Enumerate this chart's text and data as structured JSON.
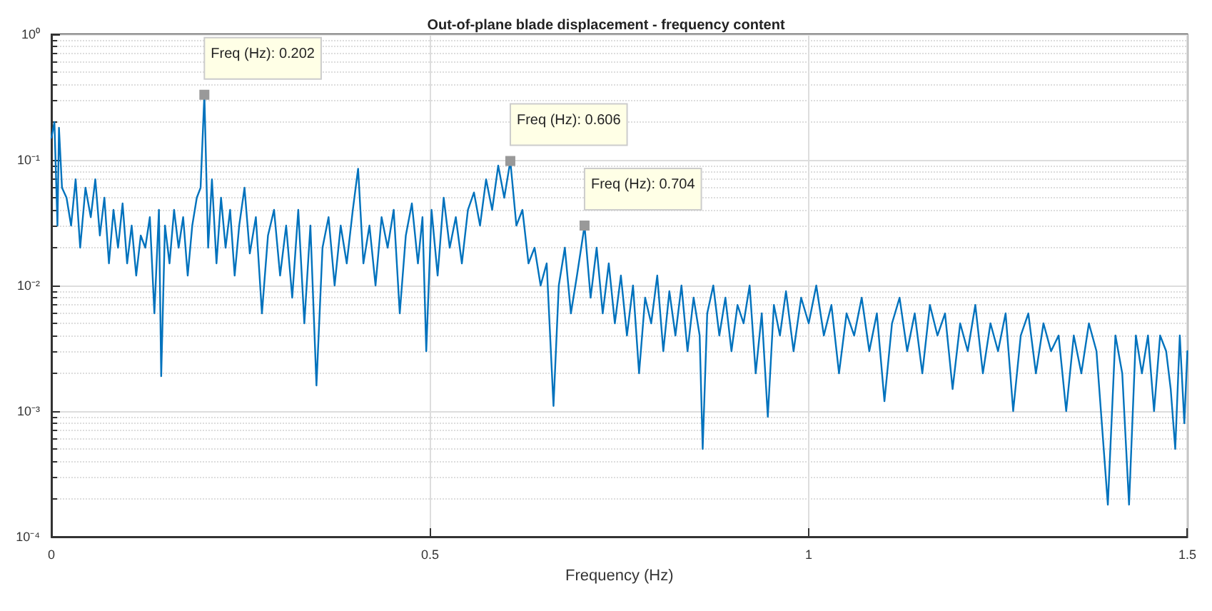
{
  "chart_data": {
    "type": "line",
    "title": "Out-of-plane blade displacement - frequency content",
    "xlabel": "Frequency (Hz)",
    "log": "y",
    "grid": true,
    "marker": "none",
    "line_style": "solid",
    "xlim": [
      0,
      1.5
    ],
    "xticks": [
      0,
      0.5,
      1,
      1.5
    ],
    "ylim": [
      0.0001,
      1
    ],
    "yticks": [
      {
        "value": 0.0001,
        "label": "10⁻⁴"
      },
      {
        "value": 0.001,
        "label": "10⁻³"
      },
      {
        "value": 0.01,
        "label": "10⁻²"
      },
      {
        "value": 0.1,
        "label": "10⁻¹"
      },
      {
        "value": 1,
        "label": "10⁰"
      }
    ],
    "annotations": [
      {
        "text": "Freq (Hz): 0.202",
        "x": 0.202,
        "y": 0.33
      },
      {
        "text": "Freq (Hz): 0.606",
        "x": 0.606,
        "y": 0.098
      },
      {
        "text": "Freq (Hz): 0.704",
        "x": 0.704,
        "y": 0.03
      }
    ],
    "series": [
      {
        "color": "#0072bd",
        "x": [
          0,
          0.004,
          0.008,
          0.01,
          0.014,
          0.02,
          0.026,
          0.032,
          0.038,
          0.045,
          0.052,
          0.058,
          0.064,
          0.07,
          0.076,
          0.082,
          0.088,
          0.094,
          0.1,
          0.106,
          0.112,
          0.118,
          0.124,
          0.13,
          0.136,
          0.142,
          0.145,
          0.15,
          0.156,
          0.162,
          0.168,
          0.174,
          0.18,
          0.186,
          0.192,
          0.197,
          0.202,
          0.207,
          0.212,
          0.218,
          0.224,
          0.23,
          0.236,
          0.242,
          0.248,
          0.255,
          0.262,
          0.27,
          0.278,
          0.286,
          0.294,
          0.302,
          0.31,
          0.318,
          0.326,
          0.334,
          0.342,
          0.35,
          0.358,
          0.366,
          0.374,
          0.382,
          0.39,
          0.398,
          0.405,
          0.412,
          0.42,
          0.428,
          0.436,
          0.444,
          0.452,
          0.46,
          0.468,
          0.476,
          0.484,
          0.49,
          0.495,
          0.502,
          0.51,
          0.518,
          0.526,
          0.534,
          0.542,
          0.55,
          0.558,
          0.566,
          0.574,
          0.582,
          0.59,
          0.598,
          0.606,
          0.614,
          0.622,
          0.63,
          0.638,
          0.646,
          0.654,
          0.663,
          0.67,
          0.678,
          0.686,
          0.694,
          0.704,
          0.712,
          0.72,
          0.728,
          0.736,
          0.744,
          0.752,
          0.76,
          0.768,
          0.776,
          0.784,
          0.792,
          0.8,
          0.808,
          0.816,
          0.824,
          0.832,
          0.84,
          0.848,
          0.856,
          0.86,
          0.866,
          0.874,
          0.882,
          0.89,
          0.898,
          0.906,
          0.914,
          0.922,
          0.93,
          0.938,
          0.946,
          0.954,
          0.962,
          0.97,
          0.98,
          0.99,
          1,
          1.01,
          1.02,
          1.03,
          1.04,
          1.05,
          1.06,
          1.07,
          1.08,
          1.09,
          1.1,
          1.11,
          1.12,
          1.13,
          1.14,
          1.15,
          1.16,
          1.17,
          1.18,
          1.19,
          1.2,
          1.21,
          1.22,
          1.23,
          1.24,
          1.25,
          1.26,
          1.27,
          1.28,
          1.29,
          1.3,
          1.31,
          1.32,
          1.33,
          1.34,
          1.35,
          1.36,
          1.37,
          1.38,
          1.395,
          1.405,
          1.414,
          1.423,
          1.432,
          1.44,
          1.448,
          1.456,
          1.464,
          1.472,
          1.478,
          1.484,
          1.49,
          1.496,
          1.5
        ],
        "values": [
          0.15,
          0.2,
          0.03,
          0.18,
          0.06,
          0.05,
          0.03,
          0.07,
          0.02,
          0.06,
          0.035,
          0.07,
          0.025,
          0.05,
          0.015,
          0.04,
          0.02,
          0.045,
          0.015,
          0.03,
          0.012,
          0.025,
          0.02,
          0.035,
          0.006,
          0.04,
          0.0019,
          0.03,
          0.015,
          0.04,
          0.02,
          0.035,
          0.012,
          0.03,
          0.05,
          0.06,
          0.33,
          0.02,
          0.07,
          0.015,
          0.05,
          0.02,
          0.04,
          0.012,
          0.03,
          0.06,
          0.018,
          0.035,
          0.006,
          0.025,
          0.04,
          0.012,
          0.03,
          0.008,
          0.04,
          0.005,
          0.03,
          0.0016,
          0.02,
          0.035,
          0.01,
          0.03,
          0.015,
          0.04,
          0.085,
          0.015,
          0.03,
          0.01,
          0.035,
          0.02,
          0.04,
          0.006,
          0.025,
          0.045,
          0.015,
          0.035,
          0.003,
          0.04,
          0.012,
          0.05,
          0.02,
          0.035,
          0.015,
          0.04,
          0.055,
          0.03,
          0.07,
          0.04,
          0.09,
          0.05,
          0.098,
          0.03,
          0.04,
          0.015,
          0.02,
          0.01,
          0.015,
          0.0011,
          0.01,
          0.02,
          0.006,
          0.012,
          0.03,
          0.008,
          0.02,
          0.006,
          0.015,
          0.005,
          0.012,
          0.004,
          0.01,
          0.002,
          0.008,
          0.005,
          0.012,
          0.003,
          0.009,
          0.004,
          0.01,
          0.003,
          0.008,
          0.004,
          0.0005,
          0.006,
          0.01,
          0.004,
          0.008,
          0.003,
          0.007,
          0.005,
          0.01,
          0.002,
          0.006,
          0.0009,
          0.007,
          0.004,
          0.009,
          0.003,
          0.008,
          0.005,
          0.01,
          0.004,
          0.007,
          0.002,
          0.006,
          0.004,
          0.008,
          0.003,
          0.006,
          0.0012,
          0.005,
          0.008,
          0.003,
          0.006,
          0.002,
          0.007,
          0.004,
          0.006,
          0.0015,
          0.005,
          0.003,
          0.007,
          0.002,
          0.005,
          0.003,
          0.006,
          0.001,
          0.004,
          0.006,
          0.002,
          0.005,
          0.003,
          0.004,
          0.001,
          0.004,
          0.002,
          0.005,
          0.003,
          0.00018,
          0.004,
          0.002,
          0.00018,
          0.004,
          0.002,
          0.004,
          0.001,
          0.004,
          0.003,
          0.0015,
          0.0005,
          0.004,
          0.0008,
          0.003
        ]
      }
    ]
  }
}
